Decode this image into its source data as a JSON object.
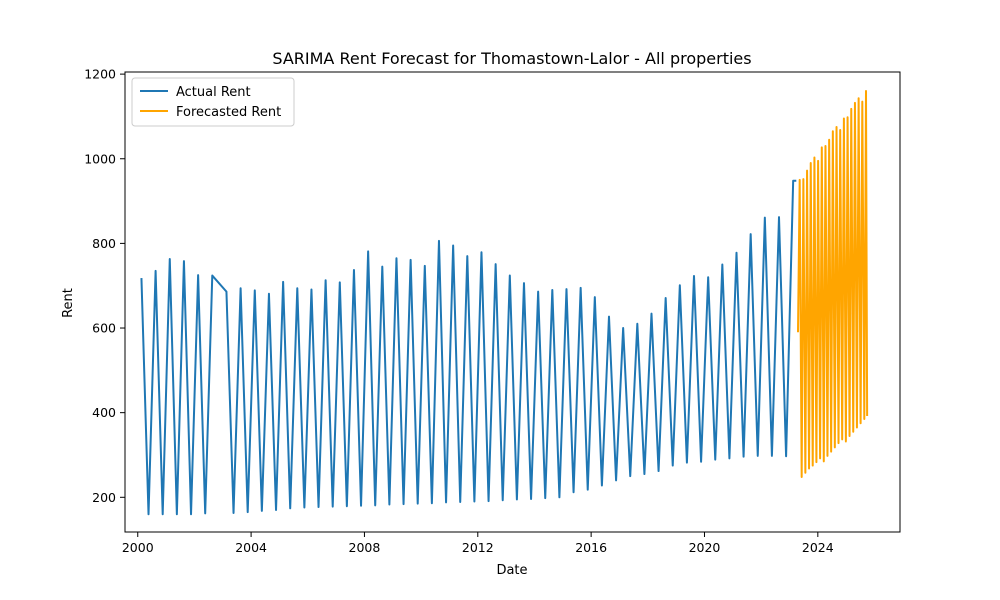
{
  "chart_data": {
    "type": "line",
    "title": "SARIMA Rent Forecast for Thomastown-Lalor - All properties",
    "xlabel": "Date",
    "ylabel": "Rent",
    "xlim": [
      1999.55,
      2026.9
    ],
    "ylim": [
      118,
      1205
    ],
    "x_ticks": [
      2000,
      2004,
      2008,
      2012,
      2016,
      2020,
      2024
    ],
    "x_tick_labels": [
      "2000",
      "2004",
      "2008",
      "2012",
      "2016",
      "2020",
      "2024"
    ],
    "y_ticks": [
      200,
      400,
      600,
      800,
      1000,
      1200
    ],
    "y_tick_labels": [
      "200",
      "400",
      "600",
      "800",
      "1000",
      "1200"
    ],
    "grid": false,
    "legend_position": "upper-left",
    "series": [
      {
        "name": "Actual Rent",
        "color": "#1f77b4",
        "points": [
          [
            2000.13,
            718
          ],
          [
            2000.38,
            160
          ],
          [
            2000.63,
            735
          ],
          [
            2000.88,
            160
          ],
          [
            2001.13,
            763
          ],
          [
            2001.38,
            160
          ],
          [
            2001.63,
            758
          ],
          [
            2001.88,
            160
          ],
          [
            2002.13,
            725
          ],
          [
            2002.38,
            162
          ],
          [
            2002.63,
            724
          ],
          [
            2003.13,
            686
          ],
          [
            2003.38,
            163
          ],
          [
            2003.63,
            694
          ],
          [
            2003.88,
            165
          ],
          [
            2004.13,
            689
          ],
          [
            2004.38,
            168
          ],
          [
            2004.63,
            681
          ],
          [
            2004.88,
            170
          ],
          [
            2005.13,
            709
          ],
          [
            2005.38,
            174
          ],
          [
            2005.63,
            694
          ],
          [
            2005.88,
            176
          ],
          [
            2006.13,
            691
          ],
          [
            2006.38,
            177
          ],
          [
            2006.63,
            713
          ],
          [
            2006.88,
            178
          ],
          [
            2007.13,
            708
          ],
          [
            2007.38,
            179
          ],
          [
            2007.63,
            737
          ],
          [
            2007.88,
            180
          ],
          [
            2008.13,
            781
          ],
          [
            2008.38,
            181
          ],
          [
            2008.63,
            745
          ],
          [
            2008.88,
            183
          ],
          [
            2009.13,
            765
          ],
          [
            2009.38,
            184
          ],
          [
            2009.63,
            761
          ],
          [
            2009.88,
            185
          ],
          [
            2010.13,
            747
          ],
          [
            2010.38,
            186
          ],
          [
            2010.63,
            806
          ],
          [
            2010.88,
            188
          ],
          [
            2011.13,
            795
          ],
          [
            2011.38,
            189
          ],
          [
            2011.63,
            770
          ],
          [
            2011.88,
            190
          ],
          [
            2012.13,
            779
          ],
          [
            2012.38,
            191
          ],
          [
            2012.63,
            751
          ],
          [
            2012.88,
            193
          ],
          [
            2013.13,
            724
          ],
          [
            2013.38,
            195
          ],
          [
            2013.63,
            706
          ],
          [
            2013.88,
            196
          ],
          [
            2014.13,
            686
          ],
          [
            2014.38,
            198
          ],
          [
            2014.63,
            690
          ],
          [
            2014.88,
            200
          ],
          [
            2015.13,
            692
          ],
          [
            2015.38,
            212
          ],
          [
            2015.63,
            695
          ],
          [
            2015.88,
            218
          ],
          [
            2016.13,
            673
          ],
          [
            2016.38,
            228
          ],
          [
            2016.63,
            627
          ],
          [
            2016.88,
            240
          ],
          [
            2017.13,
            600
          ],
          [
            2017.38,
            250
          ],
          [
            2017.63,
            610
          ],
          [
            2017.88,
            255
          ],
          [
            2018.13,
            634
          ],
          [
            2018.38,
            262
          ],
          [
            2018.63,
            671
          ],
          [
            2018.88,
            275
          ],
          [
            2019.13,
            701
          ],
          [
            2019.38,
            282
          ],
          [
            2019.63,
            723
          ],
          [
            2019.88,
            284
          ],
          [
            2020.13,
            720
          ],
          [
            2020.38,
            289
          ],
          [
            2020.63,
            750
          ],
          [
            2020.88,
            292
          ],
          [
            2021.13,
            778
          ],
          [
            2021.38,
            296
          ],
          [
            2021.63,
            822
          ],
          [
            2021.88,
            298
          ],
          [
            2022.13,
            861
          ],
          [
            2022.38,
            298
          ],
          [
            2022.63,
            862
          ],
          [
            2022.88,
            297
          ],
          [
            2023.13,
            948
          ],
          [
            2023.24,
            948
          ]
        ]
      },
      {
        "name": "Forecasted Rent",
        "color": "#ffa500",
        "points": [
          [
            2023.3,
            590
          ],
          [
            2023.36,
            950
          ],
          [
            2023.43,
            248
          ],
          [
            2023.49,
            952
          ],
          [
            2023.56,
            258
          ],
          [
            2023.62,
            972
          ],
          [
            2023.69,
            268
          ],
          [
            2023.75,
            990
          ],
          [
            2023.82,
            275
          ],
          [
            2023.88,
            1003
          ],
          [
            2023.95,
            283
          ],
          [
            2024.01,
            995
          ],
          [
            2024.08,
            292
          ],
          [
            2024.14,
            1027
          ],
          [
            2024.21,
            285
          ],
          [
            2024.27,
            1030
          ],
          [
            2024.34,
            298
          ],
          [
            2024.4,
            1045
          ],
          [
            2024.47,
            308
          ],
          [
            2024.53,
            1065
          ],
          [
            2024.6,
            318
          ],
          [
            2024.66,
            1075
          ],
          [
            2024.73,
            328
          ],
          [
            2024.79,
            1068
          ],
          [
            2024.86,
            337
          ],
          [
            2024.92,
            1095
          ],
          [
            2024.99,
            332
          ],
          [
            2025.05,
            1098
          ],
          [
            2025.12,
            345
          ],
          [
            2025.18,
            1118
          ],
          [
            2025.25,
            355
          ],
          [
            2025.31,
            1132
          ],
          [
            2025.38,
            365
          ],
          [
            2025.44,
            1143
          ],
          [
            2025.51,
            375
          ],
          [
            2025.57,
            1135
          ],
          [
            2025.64,
            385
          ],
          [
            2025.7,
            1160
          ],
          [
            2025.74,
            392
          ]
        ]
      }
    ]
  }
}
